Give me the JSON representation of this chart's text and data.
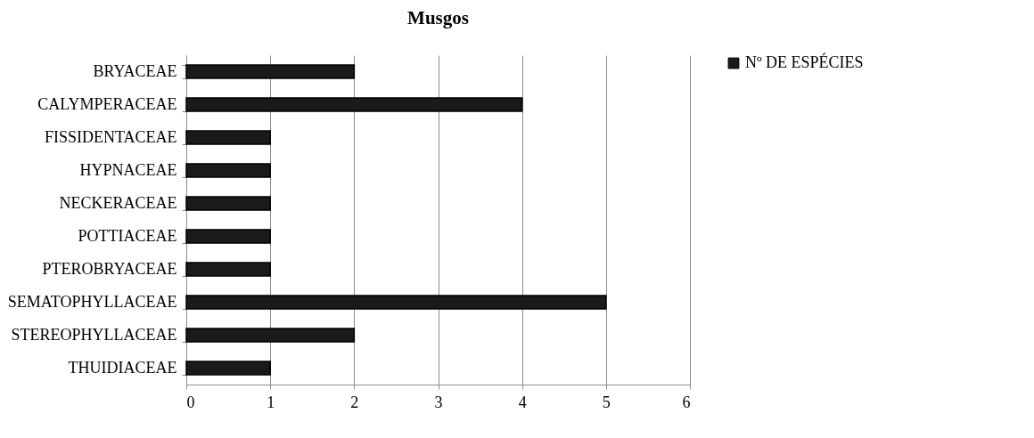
{
  "chart_data": {
    "type": "bar",
    "orientation": "horizontal",
    "title": "Musgos",
    "categories": [
      "BRYACEAE",
      "CALYMPERACEAE",
      "FISSIDENTACEAE",
      "HYPNACEAE",
      "NECKERACEAE",
      "POTTIACEAE",
      "PTEROBRYACEAE",
      "SEMATOPHYLLACEAE",
      "STEREOPHYLLACEAE",
      "THUIDIACEAE"
    ],
    "series": [
      {
        "name": "Nº DE ESPÉCIES",
        "color": "#1a1a1a",
        "values": [
          2,
          4,
          1,
          1,
          1,
          1,
          1,
          5,
          2,
          1
        ]
      }
    ],
    "xlim": [
      0,
      6
    ],
    "xticks": [
      0,
      1,
      2,
      3,
      4,
      5,
      6
    ],
    "grid": "x",
    "legend": "right"
  }
}
